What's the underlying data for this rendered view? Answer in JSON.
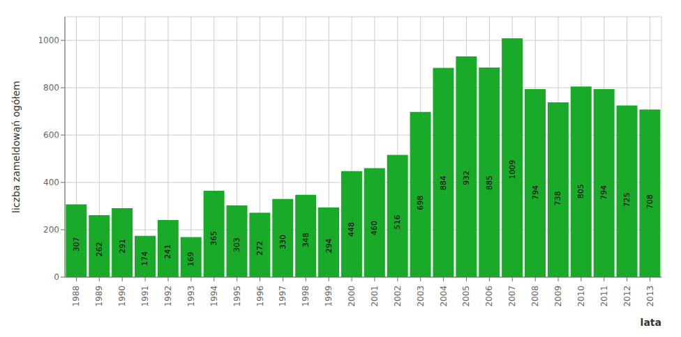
{
  "chart_data": {
    "type": "bar",
    "categories": [
      "1988",
      "1989",
      "1990",
      "1991",
      "1992",
      "1993",
      "1994",
      "1995",
      "1996",
      "1997",
      "1998",
      "1999",
      "2000",
      "2001",
      "2002",
      "2003",
      "2004",
      "2005",
      "2006",
      "2007",
      "2008",
      "2009",
      "2010",
      "2011",
      "2012",
      "2013"
    ],
    "values": [
      307,
      262,
      291,
      174,
      241,
      169,
      365,
      303,
      272,
      330,
      348,
      294,
      448,
      460,
      516,
      698,
      884,
      932,
      885,
      1009,
      794,
      738,
      805,
      794,
      725,
      708
    ],
    "color": "#1aaa2a",
    "ylabel": "liczba zameldowąń ogółem",
    "xlabel": "lata",
    "ylim": [
      0,
      1100
    ],
    "yticks": [
      0,
      200,
      400,
      600,
      800,
      1000
    ],
    "grid": true,
    "data_labels": true
  }
}
